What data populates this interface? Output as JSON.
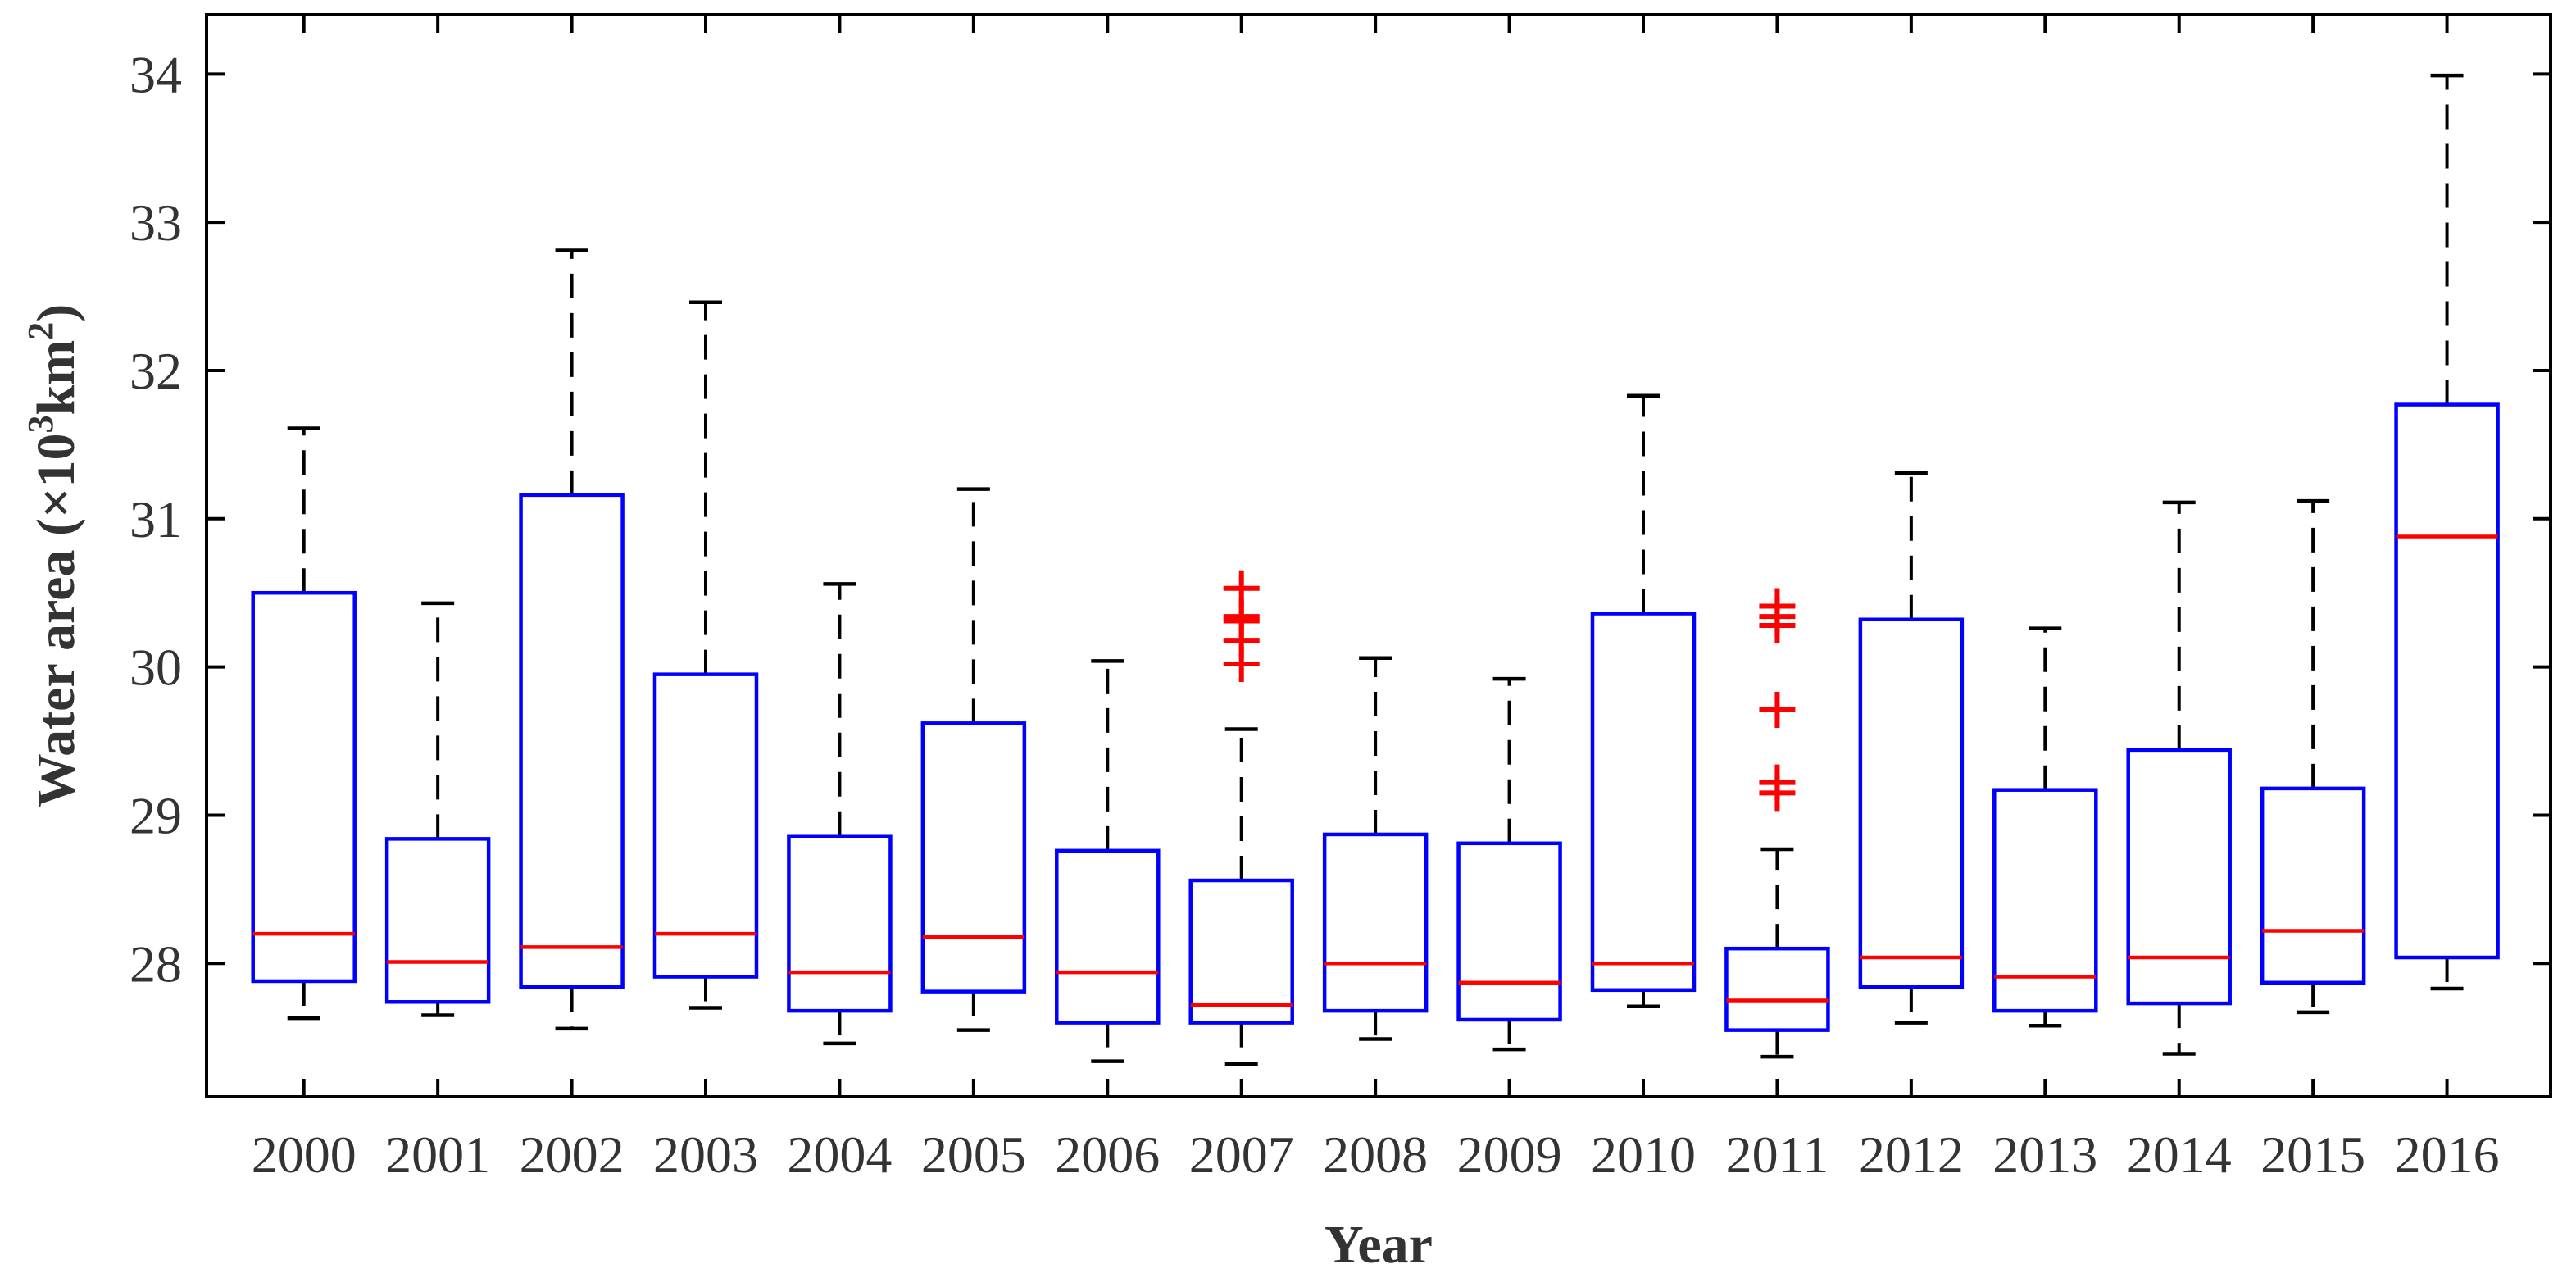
{
  "chart_data": {
    "type": "box",
    "xlabel": "Year",
    "ylabel_text": "Water area (×10",
    "ylabel_sup1": "3",
    "ylabel_unit": "km",
    "ylabel_sup2": "2",
    "ylabel_close": ")",
    "ylim": [
      27.1,
      34.4
    ],
    "yticks": [
      28,
      29,
      30,
      31,
      32,
      33,
      34
    ],
    "grid": false,
    "colors": {
      "box": "#0000ff",
      "median": "#ff0000",
      "whisker": "#000000",
      "outlier": "#ff0000"
    },
    "categories": [
      "2000",
      "2001",
      "2002",
      "2003",
      "2004",
      "2005",
      "2006",
      "2007",
      "2008",
      "2009",
      "2010",
      "2011",
      "2012",
      "2013",
      "2014",
      "2015",
      "2016"
    ],
    "boxes": [
      {
        "min": 27.63,
        "q1": 27.88,
        "median": 28.2,
        "q3": 30.5,
        "max": 31.61,
        "outliers": []
      },
      {
        "min": 27.65,
        "q1": 27.74,
        "median": 28.01,
        "q3": 28.84,
        "max": 30.43,
        "outliers": []
      },
      {
        "min": 27.56,
        "q1": 27.84,
        "median": 28.11,
        "q3": 31.16,
        "max": 32.81,
        "outliers": []
      },
      {
        "min": 27.7,
        "q1": 27.91,
        "median": 28.2,
        "q3": 29.95,
        "max": 32.46,
        "outliers": []
      },
      {
        "min": 27.46,
        "q1": 27.68,
        "median": 27.94,
        "q3": 28.86,
        "max": 30.56,
        "outliers": []
      },
      {
        "min": 27.55,
        "q1": 27.81,
        "median": 28.18,
        "q3": 29.62,
        "max": 31.2,
        "outliers": []
      },
      {
        "min": 27.34,
        "q1": 27.6,
        "median": 27.94,
        "q3": 28.76,
        "max": 30.04,
        "outliers": []
      },
      {
        "min": 27.32,
        "q1": 27.6,
        "median": 27.72,
        "q3": 28.56,
        "max": 29.58,
        "outliers": [
          30.02,
          30.18,
          30.31,
          30.34,
          30.53
        ]
      },
      {
        "min": 27.49,
        "q1": 27.68,
        "median": 28.0,
        "q3": 28.87,
        "max": 30.06,
        "outliers": []
      },
      {
        "min": 27.42,
        "q1": 27.62,
        "median": 27.87,
        "q3": 28.81,
        "max": 29.92,
        "outliers": []
      },
      {
        "min": 27.71,
        "q1": 27.82,
        "median": 28.0,
        "q3": 30.36,
        "max": 31.83,
        "outliers": []
      },
      {
        "min": 27.37,
        "q1": 27.55,
        "median": 27.75,
        "q3": 28.1,
        "max": 28.77,
        "outliers": [
          29.15,
          29.22,
          29.71,
          30.28,
          30.34,
          30.41
        ]
      },
      {
        "min": 27.6,
        "q1": 27.84,
        "median": 28.04,
        "q3": 30.32,
        "max": 31.31,
        "outliers": []
      },
      {
        "min": 27.58,
        "q1": 27.68,
        "median": 27.91,
        "q3": 29.17,
        "max": 30.26,
        "outliers": []
      },
      {
        "min": 27.39,
        "q1": 27.73,
        "median": 28.04,
        "q3": 29.44,
        "max": 31.11,
        "outliers": []
      },
      {
        "min": 27.67,
        "q1": 27.87,
        "median": 28.22,
        "q3": 29.18,
        "max": 31.12,
        "outliers": []
      },
      {
        "min": 27.83,
        "q1": 28.04,
        "median": 30.88,
        "q3": 31.77,
        "max": 33.99,
        "outliers": []
      }
    ]
  }
}
